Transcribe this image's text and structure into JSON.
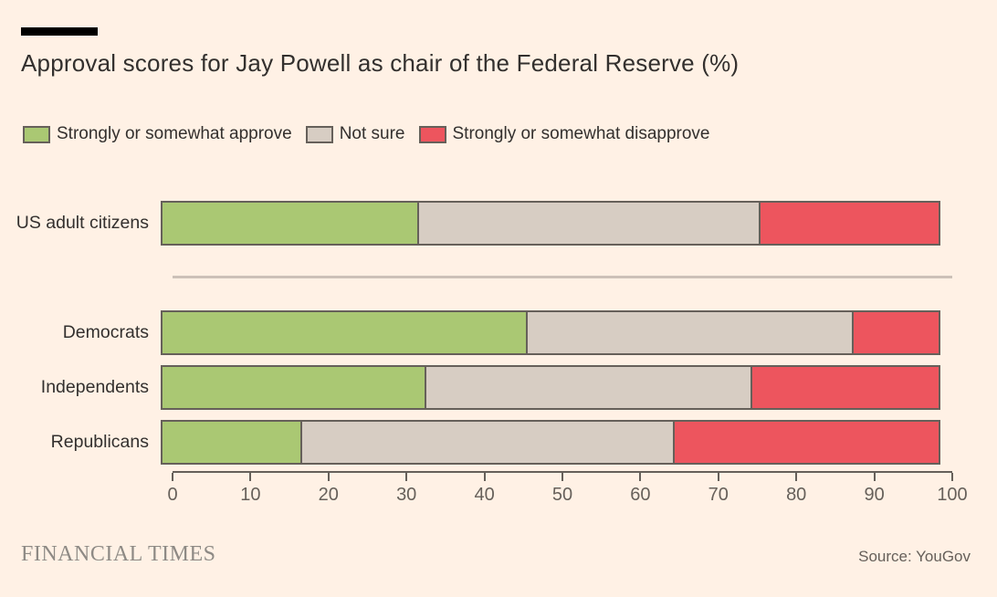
{
  "page": {
    "background": "#fff1e5"
  },
  "header": {
    "title": "Approval scores for Jay Powell as chair of the Federal Reserve (%)"
  },
  "chart_data": {
    "type": "bar",
    "stacked": true,
    "orientation": "horizontal",
    "title": "Approval scores for Jay Powell as chair of the Federal Reserve (%)",
    "categories": [
      "US adult citizens",
      "Democrats",
      "Independents",
      "Republicans"
    ],
    "series": [
      {
        "name": "Strongly or somewhat approve",
        "color": "#aac873",
        "values": [
          33,
          47,
          34,
          18
        ]
      },
      {
        "name": "Not sure",
        "color": "#d7cdc3",
        "values": [
          44,
          42,
          42,
          48
        ]
      },
      {
        "name": "Strongly or somewhat disapprove",
        "color": "#ed555e",
        "values": [
          23,
          11,
          24,
          34
        ]
      }
    ],
    "xlim": [
      0,
      100
    ],
    "x_ticks": [
      0,
      10,
      20,
      30,
      40,
      50,
      60,
      70,
      80,
      90,
      100
    ],
    "legend_position": "top",
    "separator_after_category": "US adult citizens",
    "bar_border_color": "#66605a",
    "grid": false
  },
  "footer": {
    "brand": "FINANCIAL TIMES",
    "source": "Source: YouGov"
  }
}
